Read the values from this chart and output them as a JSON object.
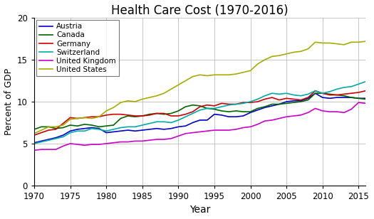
{
  "title": "Health Care Cost (1970-2016)",
  "xlabel": "Year",
  "ylabel": "Percent of GDP",
  "xlim": [
    1970,
    2016
  ],
  "ylim": [
    0,
    20
  ],
  "yticks": [
    0,
    5,
    10,
    15,
    20
  ],
  "xticks": [
    1970,
    1975,
    1980,
    1985,
    1990,
    1995,
    2000,
    2005,
    2010,
    2015
  ],
  "series": {
    "Austria": {
      "color": "#0000cc",
      "data": {
        "1970": 5.1,
        "1971": 5.3,
        "1972": 5.5,
        "1973": 5.7,
        "1974": 6.0,
        "1975": 6.5,
        "1976": 6.7,
        "1977": 6.8,
        "1978": 6.9,
        "1979": 6.8,
        "1980": 6.3,
        "1981": 6.4,
        "1982": 6.5,
        "1983": 6.6,
        "1984": 6.5,
        "1985": 6.6,
        "1986": 6.7,
        "1987": 6.8,
        "1988": 6.7,
        "1989": 6.8,
        "1990": 7.0,
        "1991": 7.1,
        "1992": 7.5,
        "1993": 7.8,
        "1994": 7.8,
        "1995": 8.5,
        "1996": 8.4,
        "1997": 8.2,
        "1998": 8.2,
        "1999": 8.3,
        "2000": 8.7,
        "2001": 9.0,
        "2002": 9.3,
        "2003": 9.5,
        "2004": 9.7,
        "2005": 10.0,
        "2006": 10.1,
        "2007": 10.1,
        "2008": 10.4,
        "2009": 11.0,
        "2010": 10.5,
        "2011": 10.4,
        "2012": 10.5,
        "2013": 10.5,
        "2014": 10.5,
        "2015": 10.4,
        "2016": 10.4
      }
    },
    "Canada": {
      "color": "#006600",
      "data": {
        "1970": 6.7,
        "1971": 7.0,
        "1972": 7.0,
        "1973": 6.8,
        "1974": 6.9,
        "1975": 7.2,
        "1976": 7.1,
        "1977": 7.3,
        "1978": 7.2,
        "1979": 7.0,
        "1980": 7.1,
        "1981": 7.2,
        "1982": 8.0,
        "1983": 8.3,
        "1984": 8.2,
        "1985": 8.3,
        "1986": 8.5,
        "1987": 8.6,
        "1988": 8.5,
        "1989": 8.6,
        "1990": 8.9,
        "1991": 9.4,
        "1992": 9.6,
        "1993": 9.5,
        "1994": 9.2,
        "1995": 9.1,
        "1996": 8.9,
        "1997": 8.8,
        "1998": 8.9,
        "1999": 8.8,
        "2000": 8.8,
        "2001": 9.2,
        "2002": 9.4,
        "2003": 9.7,
        "2004": 9.7,
        "2005": 9.8,
        "2006": 9.9,
        "2007": 10.0,
        "2008": 10.2,
        "2009": 11.0,
        "2010": 11.0,
        "2011": 10.9,
        "2012": 10.8,
        "2013": 10.7,
        "2014": 10.5,
        "2015": 10.4,
        "2016": 10.3
      }
    },
    "Germany": {
      "color": "#cc0000",
      "data": {
        "1970": 6.0,
        "1971": 6.3,
        "1972": 6.6,
        "1973": 6.7,
        "1974": 7.4,
        "1975": 8.1,
        "1976": 8.0,
        "1977": 8.1,
        "1978": 8.2,
        "1979": 8.2,
        "1980": 8.4,
        "1981": 8.5,
        "1982": 8.5,
        "1983": 8.4,
        "1984": 8.3,
        "1985": 8.3,
        "1986": 8.4,
        "1987": 8.6,
        "1988": 8.6,
        "1989": 8.3,
        "1990": 8.3,
        "1991": 8.5,
        "1992": 8.8,
        "1993": 9.4,
        "1994": 9.6,
        "1995": 9.5,
        "1996": 9.8,
        "1997": 9.7,
        "1998": 9.7,
        "1999": 9.9,
        "2000": 9.9,
        "2001": 10.0,
        "2002": 10.3,
        "2003": 10.5,
        "2004": 10.2,
        "2005": 10.4,
        "2006": 10.3,
        "2007": 10.2,
        "2008": 10.5,
        "2009": 11.3,
        "2010": 11.0,
        "2011": 10.8,
        "2012": 10.8,
        "2013": 10.9,
        "2014": 11.0,
        "2015": 11.1,
        "2016": 11.3
      }
    },
    "Switzerland": {
      "color": "#00aaaa",
      "data": {
        "1970": 5.0,
        "1971": 5.2,
        "1972": 5.4,
        "1973": 5.6,
        "1974": 5.8,
        "1975": 6.3,
        "1976": 6.5,
        "1977": 6.5,
        "1978": 6.8,
        "1979": 6.7,
        "1980": 6.5,
        "1981": 6.7,
        "1982": 6.9,
        "1983": 7.0,
        "1984": 7.0,
        "1985": 7.2,
        "1986": 7.4,
        "1987": 7.6,
        "1988": 7.6,
        "1989": 7.5,
        "1990": 7.8,
        "1991": 8.2,
        "1992": 8.6,
        "1993": 9.0,
        "1994": 9.2,
        "1995": 9.2,
        "1996": 9.4,
        "1997": 9.6,
        "1998": 9.7,
        "1999": 9.8,
        "2000": 10.0,
        "2001": 10.3,
        "2002": 10.7,
        "2003": 11.0,
        "2004": 10.9,
        "2005": 11.0,
        "2006": 10.8,
        "2007": 10.7,
        "2008": 10.9,
        "2009": 11.3,
        "2010": 11.0,
        "2011": 11.2,
        "2012": 11.5,
        "2013": 11.7,
        "2014": 11.8,
        "2015": 12.1,
        "2016": 12.4
      }
    },
    "United Kingdom": {
      "color": "#cc00cc",
      "data": {
        "1970": 4.2,
        "1971": 4.3,
        "1972": 4.3,
        "1973": 4.3,
        "1974": 4.7,
        "1975": 5.0,
        "1976": 4.9,
        "1977": 4.8,
        "1978": 4.9,
        "1979": 4.9,
        "1980": 5.0,
        "1981": 5.1,
        "1982": 5.2,
        "1983": 5.2,
        "1984": 5.3,
        "1985": 5.3,
        "1986": 5.4,
        "1987": 5.5,
        "1988": 5.5,
        "1989": 5.6,
        "1990": 5.9,
        "1991": 6.2,
        "1992": 6.3,
        "1993": 6.4,
        "1994": 6.5,
        "1995": 6.6,
        "1996": 6.6,
        "1997": 6.6,
        "1998": 6.7,
        "1999": 6.9,
        "2000": 7.0,
        "2001": 7.3,
        "2002": 7.7,
        "2003": 7.8,
        "2004": 8.0,
        "2005": 8.2,
        "2006": 8.3,
        "2007": 8.4,
        "2008": 8.7,
        "2009": 9.2,
        "2010": 8.9,
        "2011": 8.8,
        "2012": 8.8,
        "2013": 8.7,
        "2014": 9.1,
        "2015": 9.9,
        "2016": 9.8
      }
    },
    "United States": {
      "color": "#aaaa00",
      "data": {
        "1970": 6.2,
        "1971": 6.6,
        "1972": 7.0,
        "1973": 7.0,
        "1974": 7.2,
        "1975": 7.9,
        "1976": 8.0,
        "1977": 8.1,
        "1978": 8.0,
        "1979": 8.2,
        "1980": 8.9,
        "1981": 9.3,
        "1982": 9.9,
        "1983": 10.1,
        "1984": 10.0,
        "1985": 10.3,
        "1986": 10.5,
        "1987": 10.7,
        "1988": 11.0,
        "1989": 11.5,
        "1990": 12.0,
        "1991": 12.5,
        "1992": 13.0,
        "1993": 13.2,
        "1994": 13.1,
        "1995": 13.2,
        "1996": 13.2,
        "1997": 13.2,
        "1998": 13.3,
        "1999": 13.5,
        "2000": 13.7,
        "2001": 14.5,
        "2002": 15.0,
        "2003": 15.4,
        "2004": 15.5,
        "2005": 15.7,
        "2006": 15.9,
        "2007": 16.0,
        "2008": 16.3,
        "2009": 17.1,
        "2010": 17.0,
        "2011": 17.0,
        "2012": 16.9,
        "2013": 16.8,
        "2014": 17.1,
        "2015": 17.1,
        "2016": 17.2
      }
    }
  }
}
